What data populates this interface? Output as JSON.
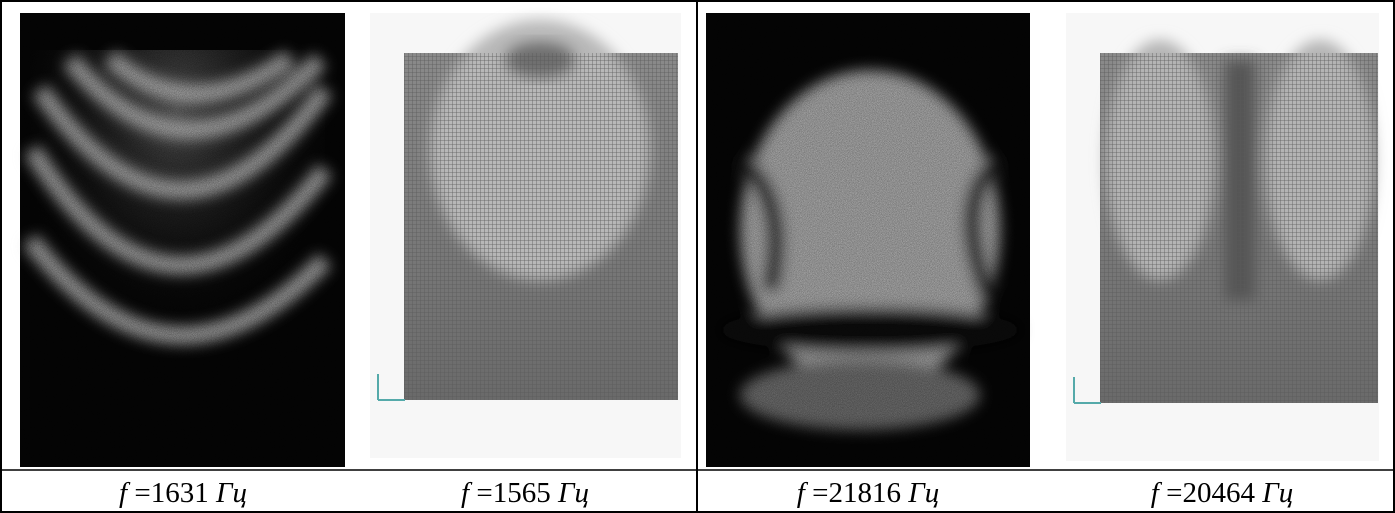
{
  "panels": [
    {
      "symbol": "f",
      "relation": "=",
      "value": "1631",
      "unit": "Гц"
    },
    {
      "symbol": "f",
      "relation": "=",
      "value": "1565",
      "unit": "Гц"
    },
    {
      "symbol": "f",
      "relation": "=",
      "value": "21816",
      "unit": "Гц"
    },
    {
      "symbol": "f",
      "relation": "=",
      "value": "20464",
      "unit": "Гц"
    }
  ]
}
